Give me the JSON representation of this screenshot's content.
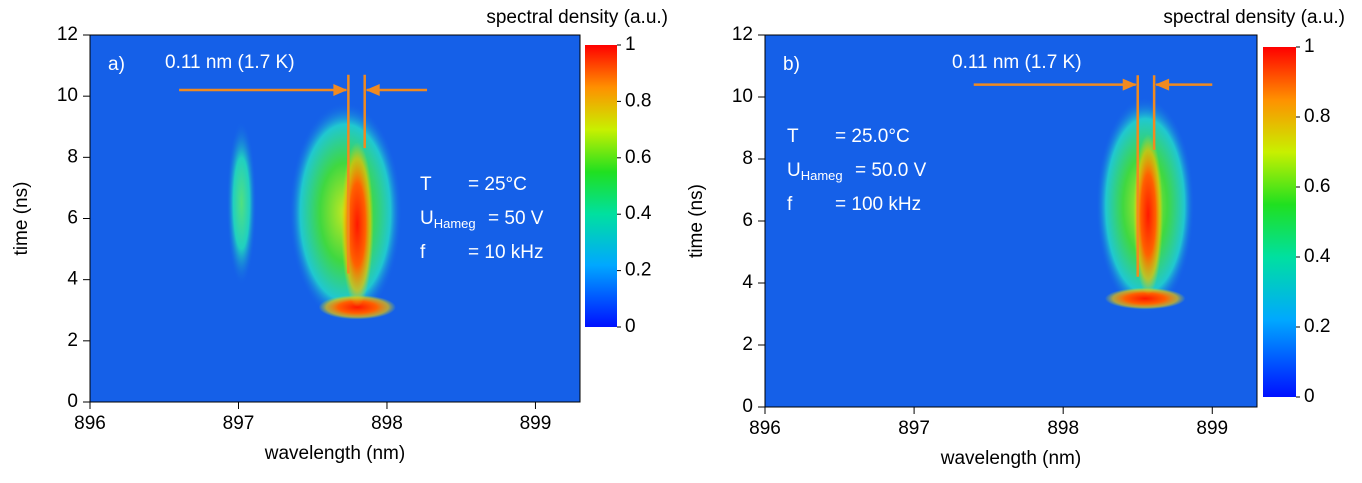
{
  "chart_data": [
    {
      "type": "heatmap",
      "panel_label": "a)",
      "xlabel": "wavelength (nm)",
      "ylabel": "time (ns)",
      "xlim": [
        896,
        899.3
      ],
      "xticks": [
        896,
        897,
        898,
        899
      ],
      "ylim": [
        0,
        12
      ],
      "yticks": [
        0,
        2,
        4,
        6,
        8,
        10,
        12
      ],
      "colorbar": {
        "label": "spectral density (a.u.)",
        "lim": [
          0,
          1
        ],
        "ticks": [
          0,
          0.2,
          0.4,
          0.6,
          0.8,
          1
        ]
      },
      "annotation": "0.11 nm (1.7 K)",
      "params": [
        {
          "name": "T",
          "value": "= 25°C"
        },
        {
          "name": "U",
          "sub": "Hameg",
          "value": "= 50 V"
        },
        {
          "name": "f",
          "value": "= 10 kHz"
        }
      ]
    },
    {
      "type": "heatmap",
      "panel_label": "b)",
      "xlabel": "wavelength (nm)",
      "ylabel": "time (ns)",
      "xlim": [
        896,
        899.3
      ],
      "xticks": [
        896,
        897,
        898,
        899
      ],
      "ylim": [
        0,
        12
      ],
      "yticks": [
        0,
        2,
        4,
        6,
        8,
        10,
        12
      ],
      "colorbar": {
        "label": "spectral density (a.u.)",
        "lim": [
          0,
          1
        ],
        "ticks": [
          0,
          0.2,
          0.4,
          0.6,
          0.8,
          1
        ]
      },
      "annotation": "0.11 nm (1.7 K)",
      "params": [
        {
          "name": "T",
          "value": "= 25.0°C"
        },
        {
          "name": "U",
          "sub": "Hameg",
          "value": "= 50.0 V"
        },
        {
          "name": "f",
          "value": "= 100 kHz"
        }
      ]
    }
  ]
}
